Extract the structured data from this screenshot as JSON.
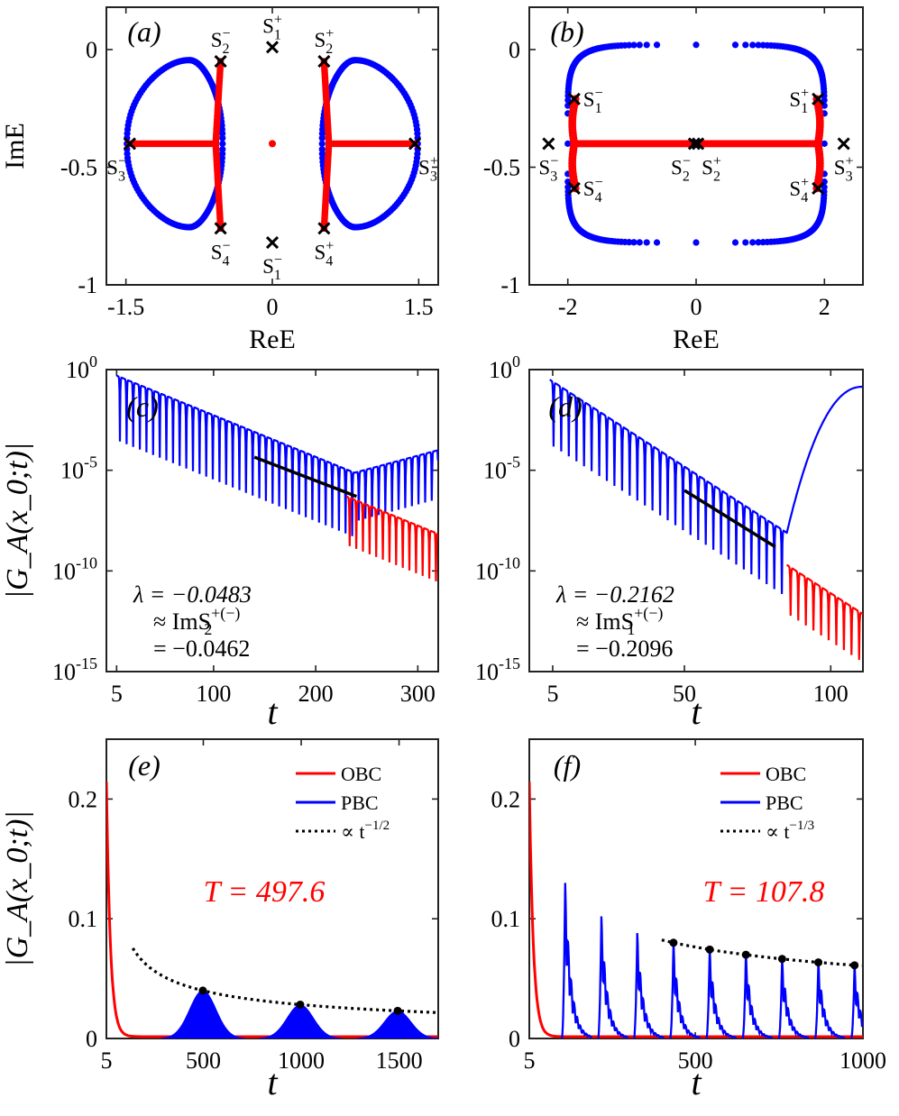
{
  "colors": {
    "obc": "#ff0000",
    "pbc": "#0000ff",
    "fit": "#000000",
    "period_text": "#ff0000"
  },
  "chart_data": [
    {
      "id": "a",
      "type": "scatter",
      "panel_label": "(a)",
      "xlabel": "ReE",
      "ylabel": "ImE",
      "xlim": [
        -1.7,
        1.7
      ],
      "ylim": [
        -1.0,
        0.18
      ],
      "xticks": [
        -1.5,
        0,
        1.5
      ],
      "xticklabels": [
        "-1.5",
        "0",
        "1.5"
      ],
      "yticks": [
        -1,
        -0.5,
        0
      ],
      "yticklabels": [
        "-1",
        "-0.5",
        "0"
      ],
      "pbc_loops": [
        {
          "center": [
            -0.85,
            -0.4
          ],
          "rx_out": 0.64,
          "rx_in": 0.34,
          "ry": 0.355,
          "side": "left"
        },
        {
          "center": [
            0.85,
            -0.4
          ],
          "rx_out": 0.64,
          "rx_in": 0.34,
          "ry": 0.355,
          "side": "right"
        }
      ],
      "obc_branches": [
        {
          "hub": [
            -0.58,
            -0.4
          ],
          "ends": [
            [
              -1.46,
              -0.4
            ],
            [
              -0.53,
              -0.05
            ],
            [
              -0.53,
              -0.76
            ]
          ]
        },
        {
          "hub": [
            0.58,
            -0.4
          ],
          "ends": [
            [
              1.46,
              -0.4
            ],
            [
              0.53,
              -0.05
            ],
            [
              0.53,
              -0.76
            ]
          ]
        }
      ],
      "obc_points": [
        [
          0,
          -0.4
        ]
      ],
      "saddle_points": [
        {
          "name": "S",
          "sup": "−",
          "sub": "2",
          "x": -0.53,
          "y": -0.05,
          "label_pos": "above"
        },
        {
          "name": "S",
          "sup": "+",
          "sub": "1",
          "x": 0.0,
          "y": 0.01,
          "label_pos": "above"
        },
        {
          "name": "S",
          "sup": "+",
          "sub": "2",
          "x": 0.53,
          "y": -0.05,
          "label_pos": "above"
        },
        {
          "name": "S",
          "sup": "−",
          "sub": "3",
          "x": -1.46,
          "y": -0.4,
          "label_pos": "below-left"
        },
        {
          "name": "S",
          "sup": "+",
          "sub": "3",
          "x": 1.46,
          "y": -0.4,
          "label_pos": "below-right"
        },
        {
          "name": "S",
          "sup": "−",
          "sub": "4",
          "x": -0.53,
          "y": -0.76,
          "label_pos": "below"
        },
        {
          "name": "S",
          "sup": "−",
          "sub": "1",
          "x": 0.0,
          "y": -0.82,
          "label_pos": "below"
        },
        {
          "name": "S",
          "sup": "+",
          "sub": "4",
          "x": 0.53,
          "y": -0.76,
          "label_pos": "below"
        }
      ]
    },
    {
      "id": "b",
      "type": "scatter",
      "panel_label": "(b)",
      "xlabel": "ReE",
      "ylabel": "",
      "xlim": [
        -2.6,
        2.6
      ],
      "ylim": [
        -1.0,
        0.18
      ],
      "xticks": [
        -2,
        0,
        2
      ],
      "xticklabels": [
        "-2",
        "0",
        "2"
      ],
      "yticks": [
        -1,
        -0.5,
        0
      ],
      "yticklabels": [
        "-1",
        "-0.5",
        "0"
      ],
      "pbc_loop": {
        "x_range": [
          -2.0,
          2.0
        ],
        "y_range": [
          -0.82,
          0.02
        ],
        "shape": "rounded-rectangle"
      },
      "obc_segment": {
        "x_range": [
          -1.9,
          1.9
        ],
        "y": -0.4,
        "end_arcs": [
          [
            -1.9,
            -0.21
          ],
          [
            -1.9,
            -0.59
          ],
          [
            1.9,
            -0.21
          ],
          [
            1.9,
            -0.59
          ]
        ]
      },
      "saddle_points": [
        {
          "name": "S",
          "sup": "−",
          "sub": "1",
          "x": -1.9,
          "y": -0.21,
          "label_pos": "right"
        },
        {
          "name": "S",
          "sup": "+",
          "sub": "1",
          "x": 1.9,
          "y": -0.21,
          "label_pos": "left"
        },
        {
          "name": "S",
          "sup": "−",
          "sub": "3",
          "x": -2.3,
          "y": -0.4,
          "label_pos": "below"
        },
        {
          "name": "S",
          "sup": "−",
          "sub": "2",
          "x": -0.03,
          "y": -0.4,
          "label_pos": "below-left"
        },
        {
          "name": "S",
          "sup": "+",
          "sub": "2",
          "x": 0.03,
          "y": -0.4,
          "label_pos": "below-right"
        },
        {
          "name": "S",
          "sup": "+",
          "sub": "3",
          "x": 2.3,
          "y": -0.4,
          "label_pos": "below"
        },
        {
          "name": "S",
          "sup": "−",
          "sub": "4",
          "x": -1.9,
          "y": -0.59,
          "label_pos": "right"
        },
        {
          "name": "S",
          "sup": "+",
          "sub": "4",
          "x": 1.9,
          "y": -0.59,
          "label_pos": "left"
        }
      ]
    },
    {
      "id": "c",
      "type": "line",
      "panel_label": "(c)",
      "xlabel": "t",
      "ylabel": "|G_A(x_0;t)|",
      "yscale": "log",
      "xlim": [
        -5,
        320
      ],
      "ylim_exp": [
        -15,
        0
      ],
      "xticks": [
        5,
        100,
        200,
        300
      ],
      "xticklabels": [
        "5",
        "100",
        "200",
        "300"
      ],
      "yticks_exp": [
        0,
        -5,
        -10,
        -15
      ],
      "yticklabels": [
        "10",
        "10",
        "10",
        "10"
      ],
      "ytickexps": [
        "0",
        "-5",
        "-10",
        "-15"
      ],
      "series": [
        {
          "kind": "pbc",
          "t_start": 5,
          "t_end": 320,
          "env_start_exp": -0.3,
          "decay_per_unit": -0.0207,
          "osc_period": 6.5,
          "min_dip_exp": -4.8,
          "crossover_t": 238,
          "post_growth_to_exp": -4.0
        },
        {
          "kind": "obc",
          "t_start": 230,
          "t_end": 320,
          "env_start_exp": -6.3,
          "decay_per_unit": -0.0207,
          "osc_period": 6.5
        }
      ],
      "fit": {
        "t_range": [
          140,
          240
        ],
        "exp_range": [
          -4.35,
          -6.3
        ]
      },
      "annotation": {
        "lambda": "λ = −0.0483",
        "approx": "≈ ImS",
        "approx_sup": "+(−)",
        "approx_sub": "2",
        "equal": "= −0.0462"
      }
    },
    {
      "id": "d",
      "type": "line",
      "panel_label": "(d)",
      "xlabel": "t",
      "ylabel": "",
      "yscale": "log",
      "xlim": [
        -3,
        111
      ],
      "ylim_exp": [
        -15,
        0
      ],
      "xticks": [
        5,
        50,
        100
      ],
      "xticklabels": [
        "5",
        "50",
        "100"
      ],
      "yticks_exp": [
        0,
        -5,
        -10,
        -15
      ],
      "yticklabels": [
        "10",
        "10",
        "10",
        "10"
      ],
      "ytickexps": [
        "0",
        "-5",
        "-10",
        "-15"
      ],
      "series": [
        {
          "kind": "pbc",
          "t_start": 4,
          "t_end": 85,
          "env_start_exp": -0.5,
          "decay_per_unit": -0.0939,
          "osc_period": 2.6,
          "rise_to_exp": -0.85,
          "rise_t": [
            85,
            111
          ]
        },
        {
          "kind": "obc",
          "t_start": 85,
          "t_end": 111,
          "env_start_exp": -9.7,
          "decay_per_unit": -0.0939,
          "osc_period": 2.6
        }
      ],
      "fit": {
        "t_range": [
          50,
          81
        ],
        "exp_range": [
          -6.0,
          -8.8
        ]
      },
      "annotation": {
        "lambda": "λ = −0.2162",
        "approx": "≈ ImS",
        "approx_sup": "+(−)",
        "approx_sub": "1",
        "equal": "= −0.2096"
      }
    },
    {
      "id": "e",
      "type": "line",
      "panel_label": "(e)",
      "xlabel": "t",
      "ylabel": "|G_A(x_0;t)|",
      "xlim": [
        5,
        1700
      ],
      "ylim": [
        0,
        0.25
      ],
      "xticks": [
        5,
        500,
        1000,
        1500
      ],
      "xticklabels": [
        "5",
        "500",
        "1000",
        "1500"
      ],
      "yticks": [
        0,
        0.1,
        0.2
      ],
      "yticklabels": [
        "0",
        "0.1",
        "0.2"
      ],
      "legend": {
        "position": "top-right",
        "entries": [
          {
            "label": "OBC",
            "kind": "obc"
          },
          {
            "label": "PBC",
            "kind": "pbc"
          },
          {
            "label": "∝ t",
            "sup": "−1/2",
            "kind": "fit"
          }
        ]
      },
      "period_label": "T = 497.6",
      "obc_peak": {
        "t": 5,
        "value": 0.213
      },
      "pbc_peaks": [
        {
          "t": 497.6,
          "value": 0.04
        },
        {
          "t": 995.2,
          "value": 0.028
        },
        {
          "t": 1492.8,
          "value": 0.023
        }
      ],
      "fit_curve": {
        "t_range": [
          140,
          1700
        ],
        "power": -0.5,
        "ref_t": 497.6,
        "ref_value": 0.04
      }
    },
    {
      "id": "f",
      "type": "line",
      "panel_label": "(f)",
      "xlabel": "t",
      "ylabel": "",
      "xlim": [
        5,
        1000
      ],
      "ylim": [
        0,
        0.25
      ],
      "xticks": [
        5,
        500,
        1000
      ],
      "xticklabels": [
        "5",
        "500",
        "1000"
      ],
      "yticks": [
        0,
        0.1,
        0.2
      ],
      "yticklabels": [
        "0",
        "0.1",
        "0.2"
      ],
      "legend": {
        "position": "top-right",
        "entries": [
          {
            "label": "OBC",
            "kind": "obc"
          },
          {
            "label": "PBC",
            "kind": "pbc"
          },
          {
            "label": "∝ t",
            "sup": "−1/3",
            "kind": "fit"
          }
        ]
      },
      "period_label": "T = 107.8",
      "obc_peak": {
        "t": 5,
        "value": 0.213
      },
      "pbc_peaks": [
        {
          "t": 112,
          "value": 0.13
        },
        {
          "t": 220,
          "value": 0.102
        },
        {
          "t": 327,
          "value": 0.088
        },
        {
          "t": 435,
          "value": 0.08
        },
        {
          "t": 543,
          "value": 0.075
        },
        {
          "t": 651,
          "value": 0.071
        },
        {
          "t": 759,
          "value": 0.067
        },
        {
          "t": 867,
          "value": 0.064
        },
        {
          "t": 975,
          "value": 0.061
        }
      ],
      "fit_curve": {
        "t_range": [
          400,
          1000
        ],
        "power": -0.3333,
        "ref_t": 435,
        "ref_value": 0.08
      }
    }
  ]
}
